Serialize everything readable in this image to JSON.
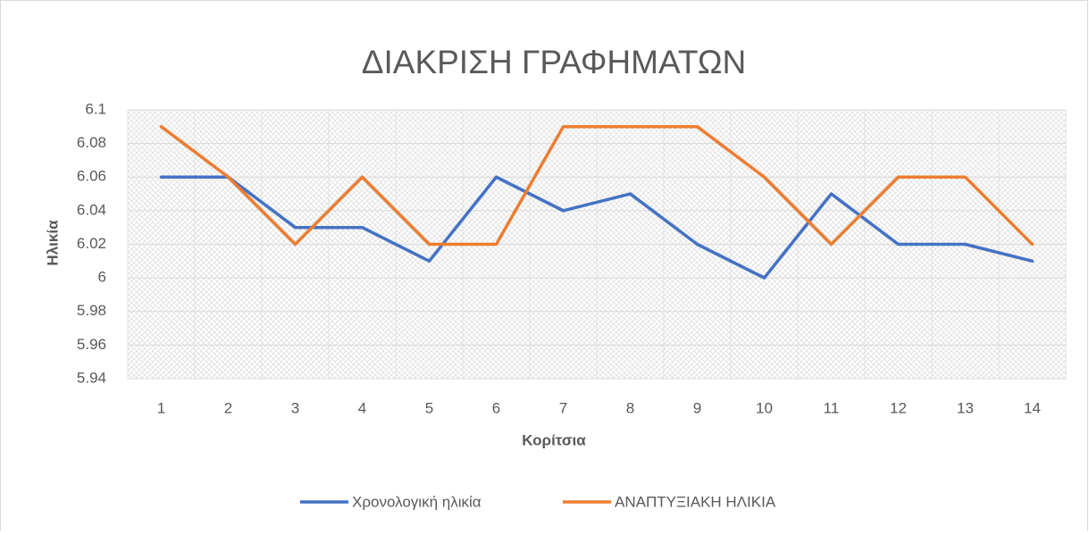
{
  "chart_data": {
    "type": "line",
    "title": "ΔΙΑΚΡΙΣΗ ΓΡΑΦΗΜΑΤΩΝ",
    "x_label": "Κορίτσια",
    "y_label": "Ηλικία",
    "categories": [
      "1",
      "2",
      "3",
      "4",
      "5",
      "6",
      "7",
      "8",
      "9",
      "10",
      "11",
      "12",
      "13",
      "14"
    ],
    "series": [
      {
        "name": "Χρονολογική ηλικία",
        "color": "#4472c4",
        "values": [
          6.06,
          6.06,
          6.03,
          6.03,
          6.01,
          6.06,
          6.04,
          6.05,
          6.02,
          6.0,
          6.05,
          6.02,
          6.02,
          6.01
        ]
      },
      {
        "name": "ΑΝΑΠΤΥΞΙΑΚΗ ΗΛΙΚΙΑ",
        "color": "#ed7d31",
        "values": [
          6.09,
          6.06,
          6.02,
          6.06,
          6.02,
          6.02,
          6.09,
          6.09,
          6.09,
          6.06,
          6.02,
          6.06,
          6.06,
          6.02
        ]
      }
    ],
    "ylim": [
      5.94,
      6.1
    ],
    "yticks": [
      5.94,
      5.96,
      5.98,
      6,
      6.02,
      6.04,
      6.06,
      6.08,
      6.1
    ],
    "grid": true,
    "legend": "bottom"
  }
}
